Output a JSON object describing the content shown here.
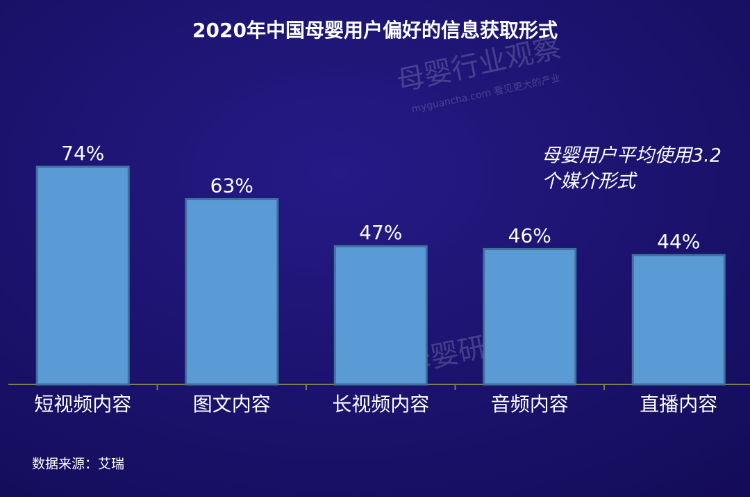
{
  "chart_data": {
    "type": "bar",
    "title": "2020年中国母婴用户偏好的信息获取形式",
    "categories": [
      "短视频内容",
      "图文内容",
      "长视频内容",
      "音频内容",
      "直播内容"
    ],
    "values": [
      74,
      63,
      47,
      46,
      44
    ],
    "value_labels": [
      "74%",
      "63%",
      "47%",
      "46%",
      "44%"
    ],
    "color": "#5b9bd5",
    "annotation": [
      "母婴用户平均使用3.2",
      "个媒介形式"
    ],
    "source": "数据来源：艾瑞",
    "watermarks": [
      "母婴行业观察",
      "myguancha.com 看见更大的产业",
      "母婴研究院"
    ]
  }
}
